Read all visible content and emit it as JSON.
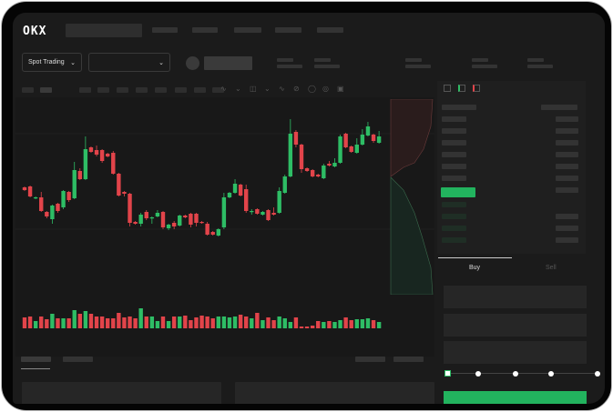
{
  "header": {
    "logo": "OKX"
  },
  "toolbar": {
    "market_type": "Spot Trading",
    "pair_selector": ""
  },
  "order_form": {
    "tabs": [
      "Buy",
      "Sell"
    ],
    "active_tab": "Buy",
    "slider_percent": 0
  },
  "colors": {
    "up": "#2ebd65",
    "down": "#e2444a",
    "accent": "#22b35e",
    "background": "#1b1b1b"
  },
  "icons": [
    "okx-logo",
    "chevron-down-icon",
    "indicator-icon",
    "draw-icon",
    "orderbook-layout-icon"
  ],
  "chart_data": {
    "type": "candlestick",
    "candles": [
      [
        96,
        97,
        92,
        93
      ],
      [
        97,
        98,
        85,
        86
      ],
      [
        84,
        86,
        83,
        85
      ],
      [
        85,
        91,
        69,
        70
      ],
      [
        69,
        70,
        62,
        64
      ],
      [
        61,
        77,
        56,
        76
      ],
      [
        78,
        79,
        68,
        70
      ],
      [
        74,
        93,
        72,
        92
      ],
      [
        91,
        92,
        80,
        82
      ],
      [
        84,
        124,
        83,
        115
      ],
      [
        114,
        117,
        104,
        105
      ],
      [
        105,
        152,
        104,
        138
      ],
      [
        140,
        141,
        134,
        135
      ],
      [
        137,
        142,
        130,
        132
      ],
      [
        137,
        138,
        123,
        125
      ],
      [
        133,
        134,
        129,
        130
      ],
      [
        134,
        136,
        110,
        111
      ],
      [
        111,
        112,
        86,
        87
      ],
      [
        91,
        92,
        86,
        89
      ],
      [
        89,
        90,
        53,
        57
      ],
      [
        58,
        59,
        55,
        56
      ],
      [
        56,
        68,
        53,
        66
      ],
      [
        69,
        71,
        60,
        62
      ],
      [
        62,
        64,
        56,
        63
      ],
      [
        64,
        71,
        63,
        68
      ],
      [
        69,
        70,
        50,
        52
      ],
      [
        51,
        56,
        49,
        55
      ],
      [
        57,
        59,
        50,
        53
      ],
      [
        54,
        66,
        53,
        65
      ],
      [
        65,
        66,
        62,
        63
      ],
      [
        67,
        68,
        52,
        55
      ],
      [
        67,
        68,
        53,
        57
      ],
      [
        58,
        59,
        56,
        57
      ],
      [
        56,
        58,
        43,
        44
      ],
      [
        47,
        48,
        43,
        44
      ],
      [
        43,
        51,
        42,
        50
      ],
      [
        52,
        90,
        50,
        85
      ],
      [
        85,
        91,
        84,
        90
      ],
      [
        90,
        105,
        89,
        100
      ],
      [
        99,
        100,
        86,
        87
      ],
      [
        94,
        99,
        68,
        70
      ],
      [
        69,
        72,
        66,
        70
      ],
      [
        72,
        73,
        66,
        67
      ],
      [
        66,
        70,
        65,
        69
      ],
      [
        71,
        72,
        59,
        60
      ],
      [
        68,
        74,
        65,
        66
      ],
      [
        68,
        96,
        67,
        92
      ],
      [
        90,
        110,
        89,
        108
      ],
      [
        108,
        171,
        107,
        155
      ],
      [
        157,
        159,
        140,
        143
      ],
      [
        143,
        144,
        112,
        116
      ],
      [
        117,
        118,
        113,
        114
      ],
      [
        115,
        116,
        107,
        108
      ],
      [
        110,
        111,
        107,
        108
      ],
      [
        106,
        122,
        105,
        120
      ],
      [
        122,
        125,
        119,
        120
      ],
      [
        119,
        128,
        118,
        123
      ],
      [
        123,
        154,
        122,
        152
      ],
      [
        155,
        156,
        139,
        140
      ],
      [
        141,
        142,
        134,
        135
      ],
      [
        134,
        150,
        133,
        143
      ],
      [
        143,
        160,
        142,
        154
      ],
      [
        153,
        168,
        152,
        163
      ],
      [
        154,
        155,
        145,
        147
      ],
      [
        145,
        158,
        144,
        152
      ]
    ],
    "volume": [
      12,
      13,
      8,
      13,
      10,
      16,
      11,
      11,
      11,
      20,
      16,
      19,
      16,
      13,
      13,
      11,
      11,
      17,
      12,
      13,
      11,
      22,
      13,
      13,
      8,
      13,
      8,
      13,
      13,
      14,
      9,
      12,
      14,
      13,
      11,
      13,
      13,
      12,
      13,
      15,
      13,
      11,
      17,
      9,
      12,
      9,
      13,
      11,
      7,
      12,
      2,
      2,
      3,
      8,
      7,
      8,
      7,
      9,
      12,
      9,
      10,
      10,
      11,
      9,
      7
    ]
  }
}
